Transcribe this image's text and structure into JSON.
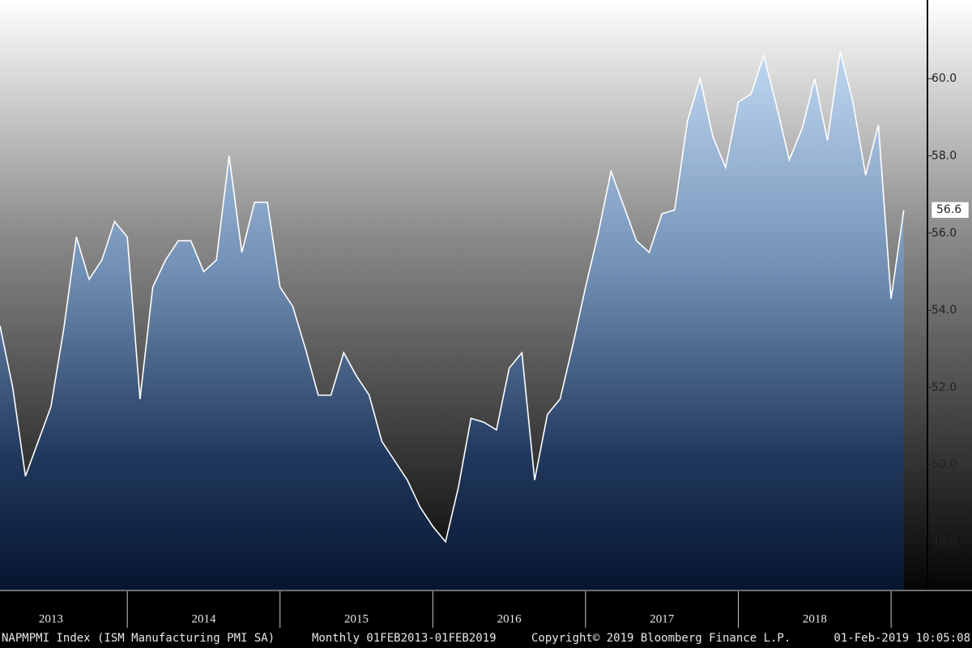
{
  "chart_data": {
    "type": "area",
    "series": [
      {
        "name": "NAPMPMI Index",
        "color": "#ffffff",
        "x": [
          2013.1667,
          2013.25,
          2013.3333,
          2013.4167,
          2013.5,
          2013.5833,
          2013.6667,
          2013.75,
          2013.8333,
          2013.9167,
          2014.0,
          2014.0833,
          2014.1667,
          2014.25,
          2014.3333,
          2014.4167,
          2014.5,
          2014.5833,
          2014.6667,
          2014.75,
          2014.8333,
          2014.9167,
          2015.0,
          2015.0833,
          2015.1667,
          2015.25,
          2015.3333,
          2015.4167,
          2015.5,
          2015.5833,
          2015.6667,
          2015.75,
          2015.8333,
          2015.9167,
          2016.0,
          2016.0833,
          2016.1667,
          2016.25,
          2016.3333,
          2016.4167,
          2016.5,
          2016.5833,
          2016.6667,
          2016.75,
          2016.8333,
          2016.9167,
          2017.0,
          2017.0833,
          2017.1667,
          2017.25,
          2017.3333,
          2017.4167,
          2017.5,
          2017.5833,
          2017.6667,
          2017.75,
          2017.8333,
          2017.9167,
          2018.0,
          2018.0833,
          2018.1667,
          2018.25,
          2018.3333,
          2018.4167,
          2018.5,
          2018.5833,
          2018.6667,
          2018.75,
          2018.8333,
          2018.9167,
          2019.0,
          2019.0833
        ],
        "values": [
          53.6,
          52.0,
          49.7,
          50.6,
          51.5,
          53.5,
          55.9,
          54.8,
          55.3,
          56.3,
          55.9,
          51.7,
          54.6,
          55.3,
          55.8,
          55.8,
          55.0,
          55.3,
          58.0,
          55.5,
          56.8,
          56.8,
          54.6,
          54.1,
          53.0,
          51.8,
          51.8,
          52.9,
          52.3,
          51.8,
          50.6,
          50.1,
          49.6,
          48.9,
          48.4,
          48.0,
          49.4,
          51.2,
          51.1,
          50.9,
          52.5,
          52.9,
          49.6,
          51.3,
          51.7,
          53.1,
          54.6,
          56.0,
          57.6,
          56.7,
          55.8,
          55.5,
          56.5,
          56.6,
          58.9,
          60.0,
          58.5,
          57.7,
          59.4,
          59.6,
          60.6,
          59.3,
          57.9,
          58.7,
          60.0,
          58.4,
          60.7,
          59.4,
          57.5,
          58.8,
          54.3,
          56.6
        ],
        "last_value_label": "56.6"
      }
    ],
    "xlim": [
      2013.1667,
      2019.238
    ],
    "xticks": [
      {
        "value": 2013.5,
        "label": "2013"
      },
      {
        "value": 2014.5,
        "label": "2014"
      },
      {
        "value": 2015.5,
        "label": "2015"
      },
      {
        "value": 2016.5,
        "label": "2016"
      },
      {
        "value": 2017.5,
        "label": "2017"
      },
      {
        "value": 2018.5,
        "label": "2018"
      }
    ],
    "ylim": [
      46.76,
      62.04
    ],
    "yticks": [
      {
        "value": 48,
        "label": "48.0"
      },
      {
        "value": 50,
        "label": "50.0"
      },
      {
        "value": 52,
        "label": "52.0"
      },
      {
        "value": 54,
        "label": "54.0"
      },
      {
        "value": 56,
        "label": "56.0"
      },
      {
        "value": 58,
        "label": "58.0"
      },
      {
        "value": 60,
        "label": "60.0"
      }
    ],
    "footer": [
      "NAPMPMI Index (ISM Manufacturing PMI SA)",
      "Monthly 01FEB2013-01FEB2019",
      "Copyright© 2019 Bloomberg Finance L.P.",
      "01-Feb-2019 10:05:08"
    ]
  }
}
